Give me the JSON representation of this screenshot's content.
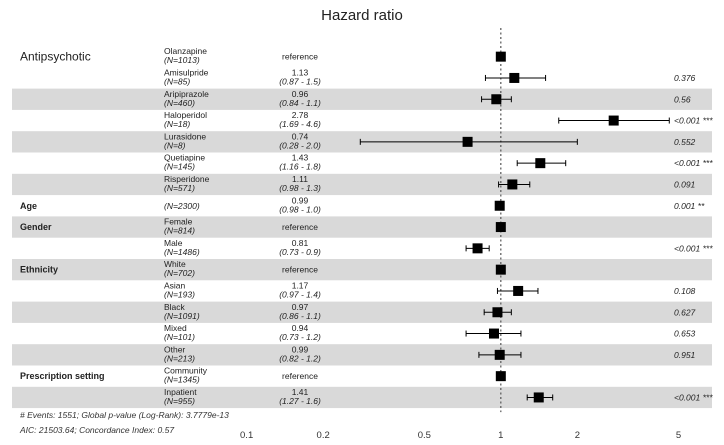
{
  "chart_data": {
    "type": "forest",
    "title": "Hazard ratio",
    "x_scale": "log",
    "xlim": [
      0.08,
      6.3
    ],
    "reference_line": 1,
    "x_ticks": [
      {
        "value": 0.1,
        "label": "0.1"
      },
      {
        "value": 0.2,
        "label": "0.2"
      },
      {
        "value": 0.5,
        "label": "0.5"
      },
      {
        "value": 1,
        "label": "1"
      },
      {
        "value": 2,
        "label": "2"
      },
      {
        "value": 5,
        "label": "5"
      }
    ],
    "rows": [
      {
        "variable": "Antipsychotic",
        "level": "Olanzapine",
        "n": "(N=1013)",
        "estimate_text": "reference",
        "ci_text": "",
        "hr": 1,
        "lo": null,
        "hi": null,
        "p": "",
        "shaded": false
      },
      {
        "variable": "",
        "level": "Amisulpride",
        "n": "(N=85)",
        "estimate_text": "1.13",
        "ci_text": "(0.87 - 1.5)",
        "hr": 1.13,
        "lo": 0.87,
        "hi": 1.5,
        "p": "0.376",
        "shaded": false
      },
      {
        "variable": "",
        "level": "Aripiprazole",
        "n": "(N=460)",
        "estimate_text": "0.96",
        "ci_text": "(0.84 - 1.1)",
        "hr": 0.96,
        "lo": 0.84,
        "hi": 1.1,
        "p": "0.56",
        "shaded": true
      },
      {
        "variable": "",
        "level": "Haloperidol",
        "n": "(N=18)",
        "estimate_text": "2.78",
        "ci_text": "(1.69 - 4.6)",
        "hr": 2.78,
        "lo": 1.69,
        "hi": 4.6,
        "p": "<0.001 ***",
        "shaded": false
      },
      {
        "variable": "",
        "level": "Lurasidone",
        "n": "(N=8)",
        "estimate_text": "0.74",
        "ci_text": "(0.28 - 2.0)",
        "hr": 0.74,
        "lo": 0.28,
        "hi": 2.0,
        "p": "0.552",
        "shaded": true
      },
      {
        "variable": "",
        "level": "Quetiapine",
        "n": "(N=145)",
        "estimate_text": "1.43",
        "ci_text": "(1.16 - 1.8)",
        "hr": 1.43,
        "lo": 1.16,
        "hi": 1.8,
        "p": "<0.001 ***",
        "shaded": false
      },
      {
        "variable": "",
        "level": "Risperidone",
        "n": "(N=571)",
        "estimate_text": "1.11",
        "ci_text": "(0.98 - 1.3)",
        "hr": 1.11,
        "lo": 0.98,
        "hi": 1.3,
        "p": "0.091",
        "shaded": true
      },
      {
        "variable": "Age",
        "level": "",
        "n": "(N=2300)",
        "estimate_text": "0.99",
        "ci_text": "(0.98 - 1.0)",
        "hr": 0.99,
        "lo": 0.98,
        "hi": 1.0,
        "p": "0.001 **",
        "shaded": false
      },
      {
        "variable": "Gender",
        "level": "Female",
        "n": "(N=814)",
        "estimate_text": "reference",
        "ci_text": "",
        "hr": 1,
        "lo": null,
        "hi": null,
        "p": "",
        "shaded": true
      },
      {
        "variable": "",
        "level": "Male",
        "n": "(N=1486)",
        "estimate_text": "0.81",
        "ci_text": "(0.73 - 0.9)",
        "hr": 0.81,
        "lo": 0.73,
        "hi": 0.9,
        "p": "<0.001 ***",
        "shaded": false
      },
      {
        "variable": "Ethnicity",
        "level": "White",
        "n": "(N=702)",
        "estimate_text": "reference",
        "ci_text": "",
        "hr": 1,
        "lo": null,
        "hi": null,
        "p": "",
        "shaded": true
      },
      {
        "variable": "",
        "level": "Asian",
        "n": "(N=193)",
        "estimate_text": "1.17",
        "ci_text": "(0.97 - 1.4)",
        "hr": 1.17,
        "lo": 0.97,
        "hi": 1.4,
        "p": "0.108",
        "shaded": false
      },
      {
        "variable": "",
        "level": "Black",
        "n": "(N=1091)",
        "estimate_text": "0.97",
        "ci_text": "(0.86 - 1.1)",
        "hr": 0.97,
        "lo": 0.86,
        "hi": 1.1,
        "p": "0.627",
        "shaded": true
      },
      {
        "variable": "",
        "level": "Mixed",
        "n": "(N=101)",
        "estimate_text": "0.94",
        "ci_text": "(0.73 - 1.2)",
        "hr": 0.94,
        "lo": 0.73,
        "hi": 1.2,
        "p": "0.653",
        "shaded": false
      },
      {
        "variable": "",
        "level": "Other",
        "n": "(N=213)",
        "estimate_text": "0.99",
        "ci_text": "(0.82 - 1.2)",
        "hr": 0.99,
        "lo": 0.82,
        "hi": 1.2,
        "p": "0.951",
        "shaded": true
      },
      {
        "variable": "Prescription setting",
        "level": "Community",
        "n": "(N=1345)",
        "estimate_text": "reference",
        "ci_text": "",
        "hr": 1,
        "lo": null,
        "hi": null,
        "p": "",
        "shaded": false
      },
      {
        "variable": "",
        "level": "Inpatient",
        "n": "(N=955)",
        "estimate_text": "1.41",
        "ci_text": "(1.27 - 1.6)",
        "hr": 1.41,
        "lo": 1.27,
        "hi": 1.6,
        "p": "<0.001 ***",
        "shaded": true
      }
    ],
    "footnotes": [
      "# Events: 1551; Global p-value (Log-Rank): 3.7779e-13",
      "AIC: 21503.64; Concordance Index: 0.57"
    ],
    "colors": {
      "stripe": "#d9d9d9",
      "marker": "#000000",
      "reference_line": "#555555",
      "text": "#222222"
    }
  }
}
